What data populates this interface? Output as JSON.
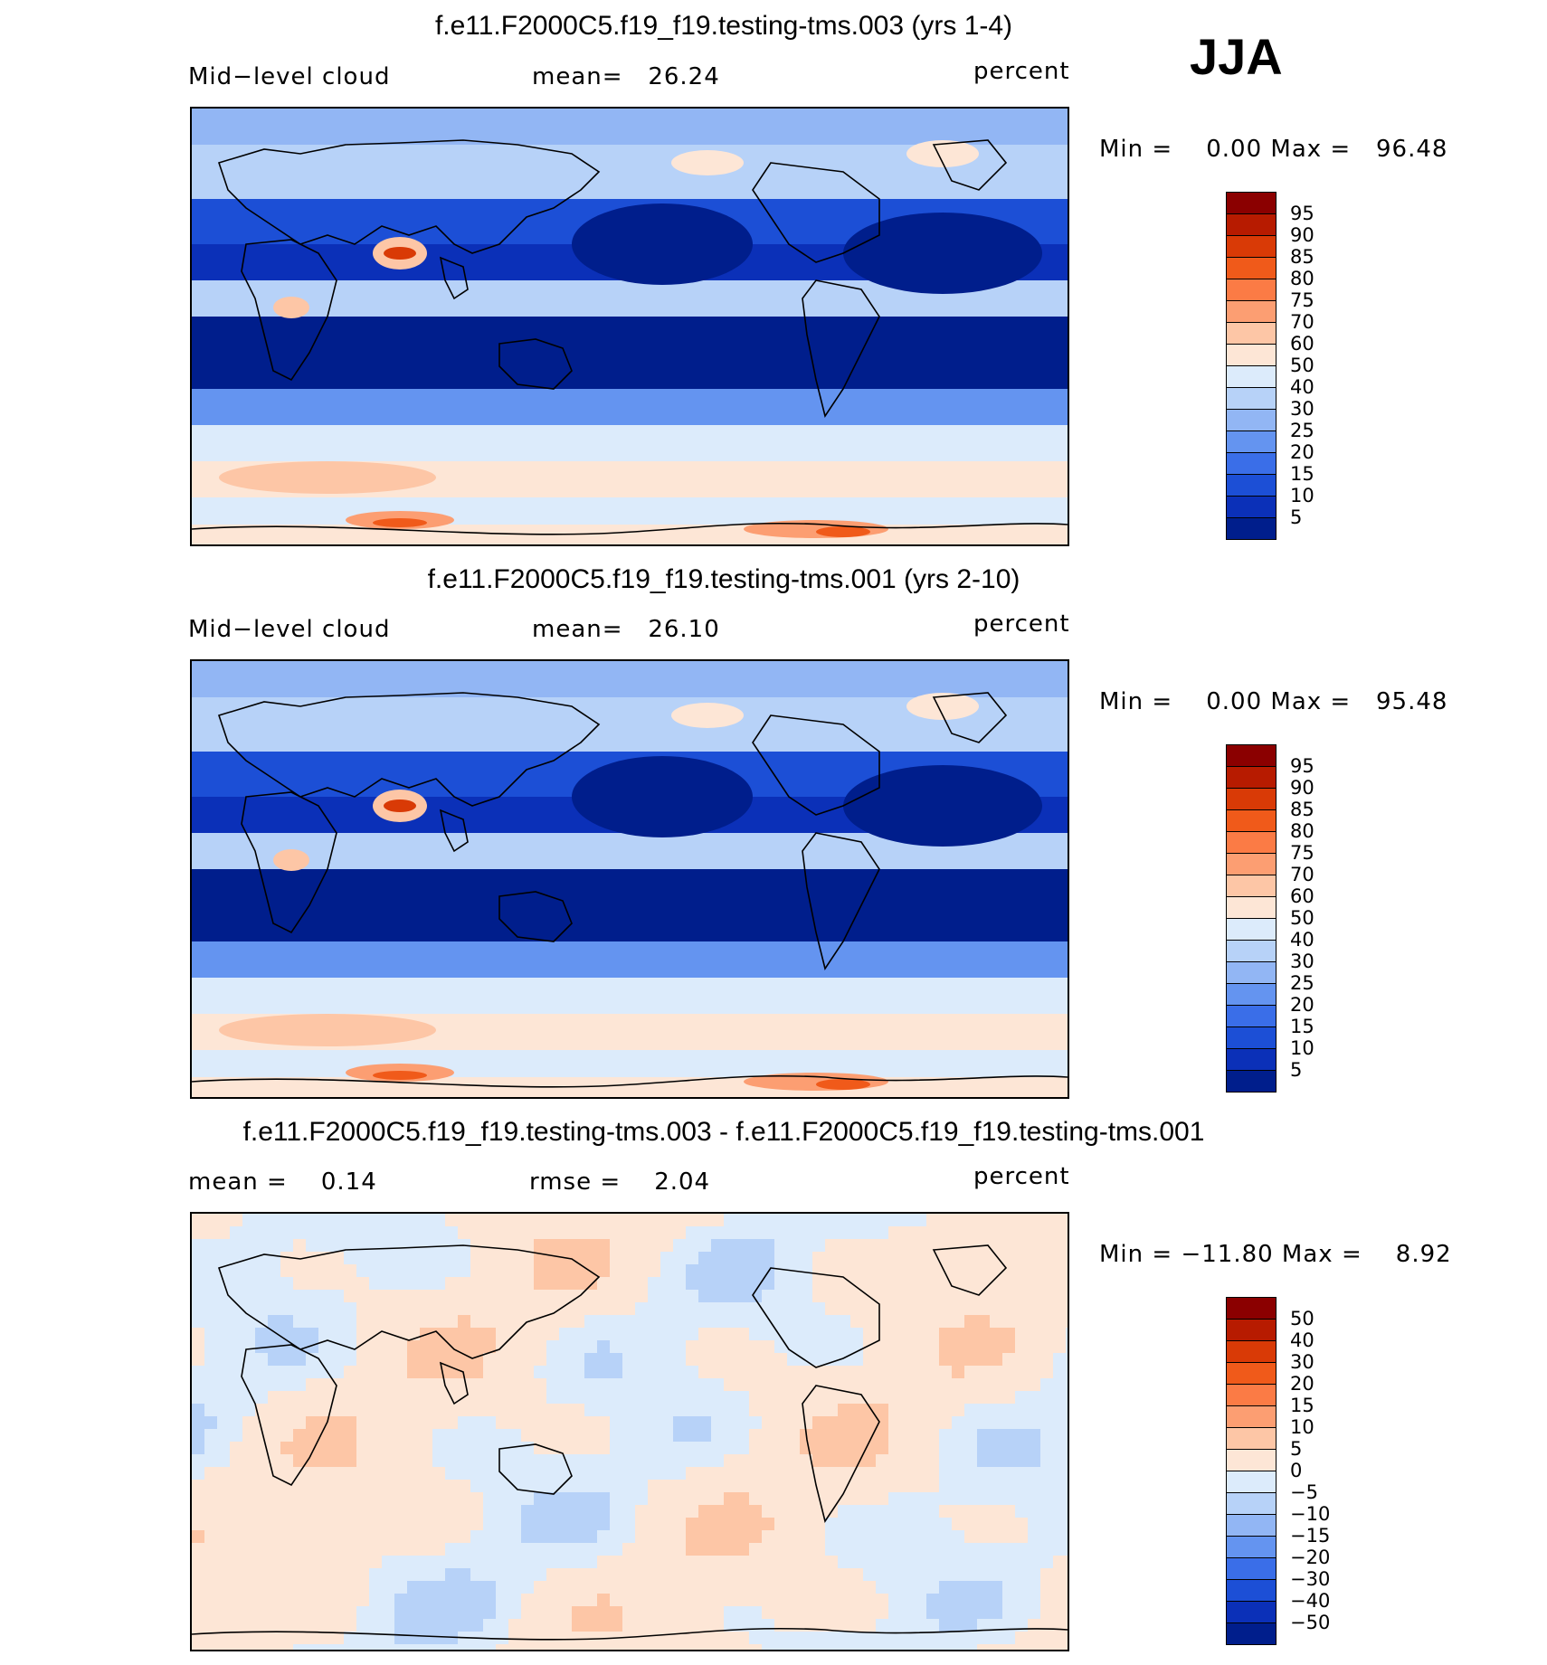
{
  "season": "JJA",
  "panels": [
    {
      "title": "f.e11.F2000C5.f19_f19.testing-tms.003 (yrs 1-4)",
      "left_label": "Mid−level cloud",
      "center_label": "mean=   26.24",
      "right_label": "percent",
      "minmax": "Min =    0.00 Max =   96.48",
      "type": "mean",
      "colorbar": {
        "labels": [
          "95",
          "90",
          "85",
          "80",
          "75",
          "70",
          "60",
          "50",
          "40",
          "30",
          "25",
          "20",
          "15",
          "10",
          "5"
        ],
        "colors": [
          "#8b0000",
          "#b71b00",
          "#d93a06",
          "#f05a1a",
          "#fb7b45",
          "#fc9e72",
          "#fdc6a6",
          "#fde6d6",
          "#dcebfb",
          "#b7d2f8",
          "#92b6f4",
          "#6494f0",
          "#3a6ee8",
          "#1c4fd6",
          "#0b30b8",
          "#001e8c"
        ]
      }
    },
    {
      "title": "f.e11.F2000C5.f19_f19.testing-tms.001 (yrs 2-10)",
      "left_label": "Mid−level cloud",
      "center_label": "mean=   26.10",
      "right_label": "percent",
      "minmax": "Min =    0.00 Max =   95.48",
      "type": "mean",
      "colorbar": {
        "labels": [
          "95",
          "90",
          "85",
          "80",
          "75",
          "70",
          "60",
          "50",
          "40",
          "30",
          "25",
          "20",
          "15",
          "10",
          "5"
        ],
        "colors": [
          "#8b0000",
          "#b71b00",
          "#d93a06",
          "#f05a1a",
          "#fb7b45",
          "#fc9e72",
          "#fdc6a6",
          "#fde6d6",
          "#dcebfb",
          "#b7d2f8",
          "#92b6f4",
          "#6494f0",
          "#3a6ee8",
          "#1c4fd6",
          "#0b30b8",
          "#001e8c"
        ]
      }
    },
    {
      "title": "f.e11.F2000C5.f19_f19.testing-tms.003 - f.e11.F2000C5.f19_f19.testing-tms.001",
      "left_label": "mean =    0.14",
      "center_label": "rmse =    2.04",
      "right_label": "percent",
      "minmax": "Min = −11.80 Max =    8.92",
      "type": "diff",
      "colorbar": {
        "labels": [
          "50",
          "40",
          "30",
          "20",
          "15",
          "10",
          "5",
          "0",
          "−5",
          "−10",
          "−15",
          "−20",
          "−30",
          "−40",
          "−50"
        ],
        "colors": [
          "#8b0000",
          "#b71b00",
          "#d93a06",
          "#f05a1a",
          "#fb7b45",
          "#fc9e72",
          "#fdc6a6",
          "#fde6d6",
          "#dcebfb",
          "#b7d2f8",
          "#92b6f4",
          "#6494f0",
          "#3a6ee8",
          "#1c4fd6",
          "#0b30b8",
          "#001e8c"
        ]
      }
    }
  ]
}
